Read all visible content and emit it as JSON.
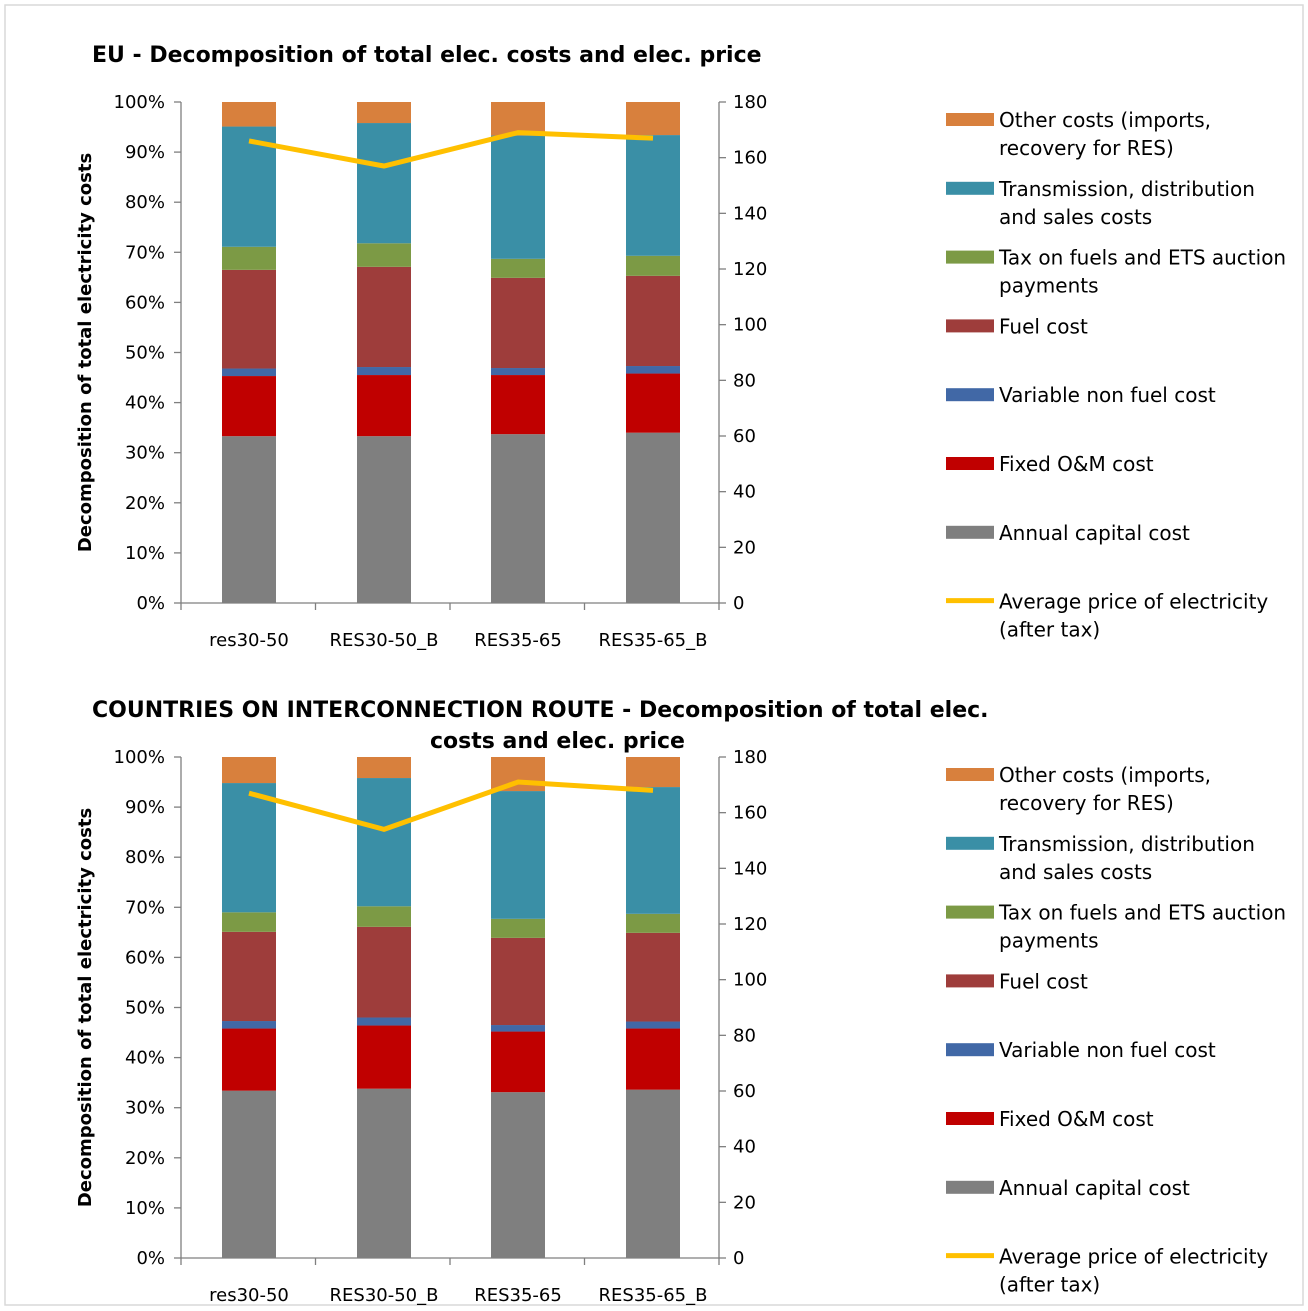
{
  "chart_data": [
    {
      "type": "bar",
      "stacked": true,
      "title_lines": [
        "EU - Decomposition of total elec. costs and elec. price"
      ],
      "ylabel": "Decomposition of total electricity costs",
      "categories": [
        "res30-50",
        "RES30-50_B",
        "RES35-65",
        "RES35-65_B"
      ],
      "ylim": [
        0,
        100
      ],
      "y_ticks": [
        "0%",
        "10%",
        "20%",
        "30%",
        "40%",
        "50%",
        "60%",
        "70%",
        "80%",
        "90%",
        "100%"
      ],
      "y2lim": [
        0,
        180
      ],
      "y2_ticks": [
        "0",
        "20",
        "40",
        "60",
        "80",
        "100",
        "120",
        "140",
        "160",
        "180"
      ],
      "series": [
        {
          "name": "Annual capital cost",
          "color": "#7f7f7f",
          "values": [
            33.3,
            33.3,
            33.7,
            34.0
          ]
        },
        {
          "name": "Fixed O&M cost",
          "color": "#c00000",
          "values": [
            12.0,
            12.2,
            11.8,
            11.8
          ]
        },
        {
          "name": "Variable non fuel cost",
          "color": "#4168a6",
          "values": [
            1.5,
            1.6,
            1.4,
            1.5
          ]
        },
        {
          "name": "Fuel cost",
          "color": "#9e3d3b",
          "values": [
            19.7,
            20.0,
            18.0,
            18.0
          ]
        },
        {
          "name": "Tax on fuels and ETS auction payments",
          "color": "#7c9a45",
          "values": [
            4.6,
            4.7,
            3.8,
            4.0
          ]
        },
        {
          "name": "Transmission, distribution and sales costs",
          "color": "#3a8fa6",
          "values": [
            24.0,
            24.0,
            24.6,
            24.1
          ]
        },
        {
          "name": "Other costs (imports, recovery for RES)",
          "color": "#d8803d",
          "values": [
            4.9,
            4.2,
            6.7,
            6.6
          ]
        }
      ],
      "line": {
        "name": "Average price of electricity (after tax)",
        "color": "#ffc000",
        "values": [
          166,
          157,
          169,
          167
        ]
      }
    },
    {
      "type": "bar",
      "stacked": true,
      "title_lines": [
        "COUNTRIES ON INTERCONNECTION ROUTE - Decomposition of total elec.",
        "costs and elec. price"
      ],
      "ylabel": "Decomposition of total electricity costs",
      "categories": [
        "res30-50",
        "RES30-50_B",
        "RES35-65",
        "RES35-65_B"
      ],
      "ylim": [
        0,
        100
      ],
      "y_ticks": [
        "0%",
        "10%",
        "20%",
        "30%",
        "40%",
        "50%",
        "60%",
        "70%",
        "80%",
        "90%",
        "100%"
      ],
      "y2lim": [
        0,
        180
      ],
      "y2_ticks": [
        "0",
        "20",
        "40",
        "60",
        "80",
        "100",
        "120",
        "140",
        "160",
        "180"
      ],
      "series": [
        {
          "name": "Annual capital cost",
          "color": "#7f7f7f",
          "values": [
            33.4,
            33.8,
            33.1,
            33.6
          ]
        },
        {
          "name": "Fixed O&M cost",
          "color": "#c00000",
          "values": [
            12.4,
            12.6,
            12.1,
            12.2
          ]
        },
        {
          "name": "Variable non fuel cost",
          "color": "#4168a6",
          "values": [
            1.5,
            1.6,
            1.3,
            1.4
          ]
        },
        {
          "name": "Fuel cost",
          "color": "#9e3d3b",
          "values": [
            17.8,
            18.1,
            17.4,
            17.7
          ]
        },
        {
          "name": "Tax on fuels and ETS auction payments",
          "color": "#7c9a45",
          "values": [
            3.9,
            4.1,
            3.8,
            3.8
          ]
        },
        {
          "name": "Transmission, distribution and sales costs",
          "color": "#3a8fa6",
          "values": [
            25.8,
            25.6,
            25.5,
            25.3
          ]
        },
        {
          "name": "Other costs (imports, recovery for RES)",
          "color": "#d8803d",
          "values": [
            5.2,
            4.2,
            6.8,
            6.0
          ]
        }
      ],
      "line": {
        "name": "Average price of electricity (after tax)",
        "color": "#ffc000",
        "values": [
          167,
          154,
          171,
          168
        ]
      }
    }
  ],
  "legend": [
    {
      "lines": [
        "Other costs (imports,",
        "recovery for RES)"
      ],
      "color": "#d8803d",
      "kind": "box"
    },
    {
      "lines": [
        "Transmission, distribution",
        "and sales costs"
      ],
      "color": "#3a8fa6",
      "kind": "box"
    },
    {
      "lines": [
        "Tax on fuels and ETS auction",
        "payments"
      ],
      "color": "#7c9a45",
      "kind": "box"
    },
    {
      "lines": [
        "Fuel cost"
      ],
      "color": "#9e3d3b",
      "kind": "box"
    },
    {
      "lines": [
        "Variable non fuel cost"
      ],
      "color": "#4168a6",
      "kind": "box"
    },
    {
      "lines": [
        "Fixed O&M cost"
      ],
      "color": "#c00000",
      "kind": "box"
    },
    {
      "lines": [
        "Annual capital cost"
      ],
      "color": "#7f7f7f",
      "kind": "box"
    },
    {
      "lines": [
        "Average price of electricity",
        "(after tax)"
      ],
      "color": "#ffc000",
      "kind": "line"
    }
  ]
}
